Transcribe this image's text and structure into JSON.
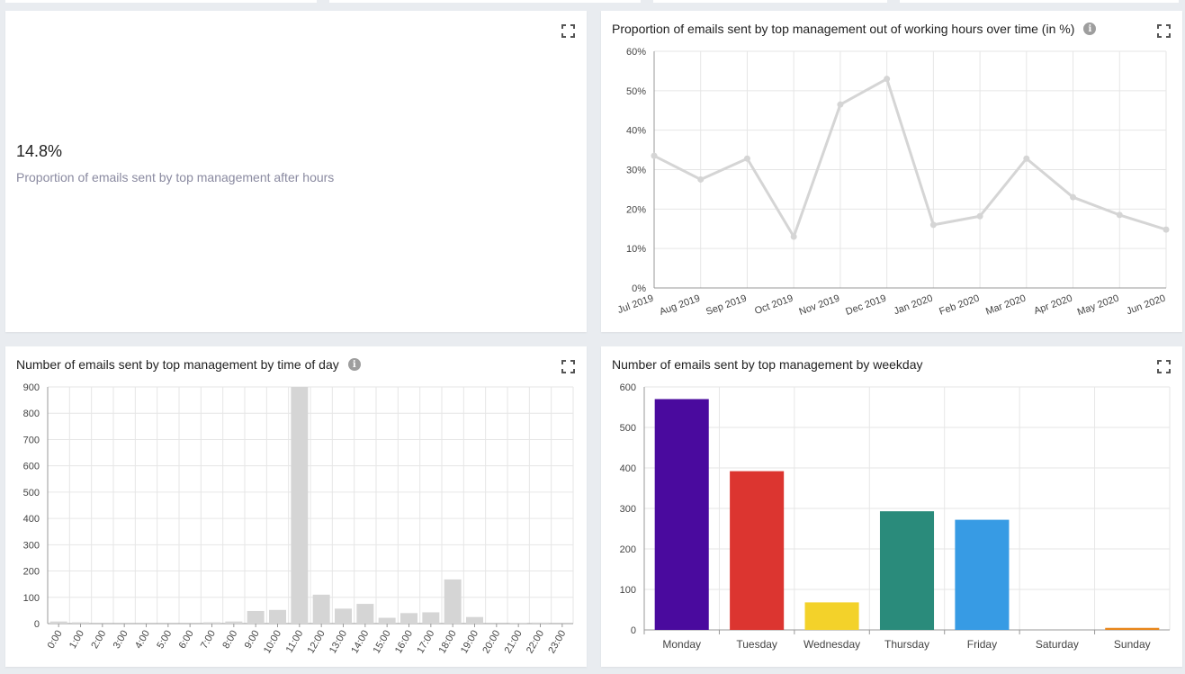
{
  "kpi": {
    "value": "14.8%",
    "label": "Proportion of emails sent by top management after hours"
  },
  "panels": {
    "line_title": "Proportion of emails sent by top management out of working hours over time (in %)",
    "hour_title": "Number of emails sent by top management by time of day",
    "weekday_title": "Number of emails sent by top management by weekday"
  },
  "icons": {
    "info": "info-icon",
    "expand": "expand-icon"
  },
  "chart_data": [
    {
      "id": "line",
      "type": "line",
      "title": "Proportion of emails sent by top management out of working hours over time (in %)",
      "categories": [
        "Jul 2019",
        "Aug 2019",
        "Sep 2019",
        "Oct 2019",
        "Nov 2019",
        "Dec 2019",
        "Jan 2020",
        "Feb 2020",
        "Mar 2020",
        "Apr 2020",
        "May 2020",
        "Jun 2020"
      ],
      "series": [
        {
          "values": [
            33.5,
            27.5,
            32.8,
            13,
            46.5,
            53,
            16,
            18.2,
            32.8,
            23,
            18.5,
            14.8
          ],
          "color": "#d5d5d5"
        }
      ],
      "yticks": [
        0,
        10,
        20,
        30,
        40,
        50,
        60
      ],
      "ylim": [
        0,
        60
      ],
      "y_suffix": "%",
      "grid": true
    },
    {
      "id": "hour",
      "type": "bar",
      "title": "Number of emails sent by top management by time of day",
      "categories": [
        "0:00",
        "1:00",
        "2:00",
        "3:00",
        "4:00",
        "5:00",
        "6:00",
        "7:00",
        "8:00",
        "9:00",
        "10:00",
        "11:00",
        "12:00",
        "13:00",
        "14:00",
        "15:00",
        "16:00",
        "17:00",
        "18:00",
        "19:00",
        "20:00",
        "21:00",
        "22:00",
        "23:00"
      ],
      "values": [
        8,
        5,
        0,
        0,
        0,
        0,
        0,
        5,
        8,
        48,
        52,
        900,
        110,
        57,
        75,
        22,
        40,
        43,
        168,
        25,
        0,
        3,
        4,
        0
      ],
      "color": "#d5d5d5",
      "yticks": [
        0,
        100,
        200,
        300,
        400,
        500,
        600,
        700,
        800,
        900
      ],
      "ylim": [
        0,
        900
      ],
      "grid": true
    },
    {
      "id": "weekday",
      "type": "bar",
      "title": "Number of emails sent by top management by weekday",
      "categories": [
        "Monday",
        "Tuesday",
        "Wednesday",
        "Thursday",
        "Friday",
        "Saturday",
        "Sunday"
      ],
      "values": [
        570,
        392,
        68,
        293,
        272,
        0,
        5
      ],
      "colors": [
        "#4a0a9e",
        "#dc3530",
        "#f3d22a",
        "#2a8b7b",
        "#379be4",
        "#e0e0e0",
        "#e8861a"
      ],
      "yticks": [
        0,
        100,
        200,
        300,
        400,
        500,
        600
      ],
      "ylim": [
        0,
        600
      ],
      "grid": true
    }
  ]
}
